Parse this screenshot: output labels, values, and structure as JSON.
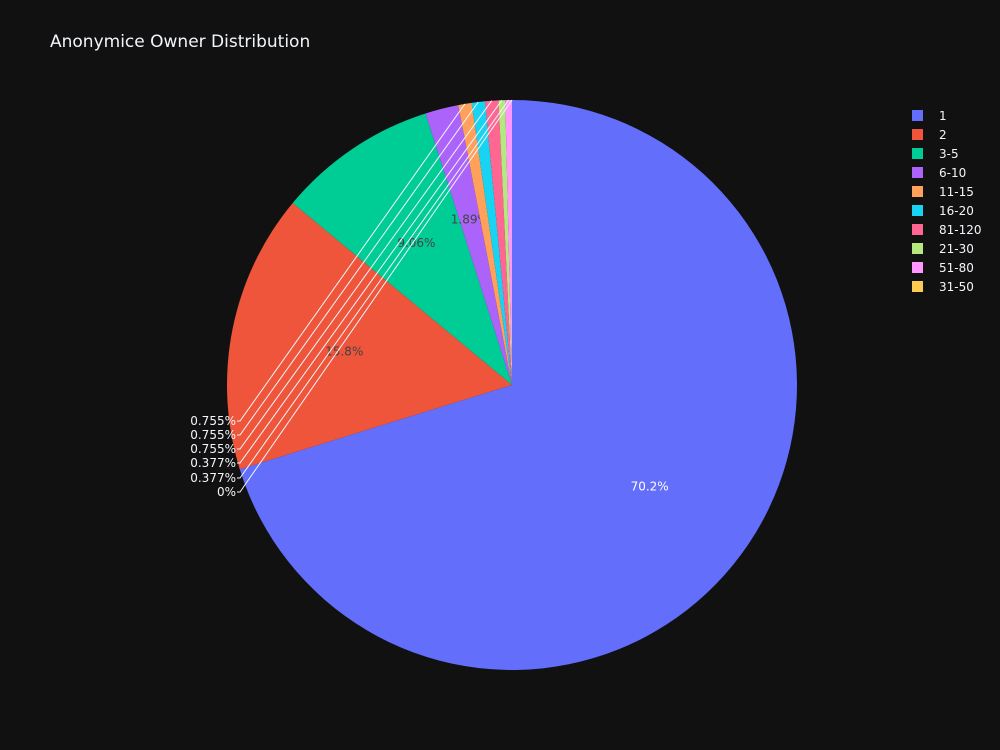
{
  "chart_data": {
    "type": "pie",
    "title": "Anonymice Owner Distribution",
    "slices": [
      {
        "label": "1",
        "percent": 70.2,
        "display": "70.2%",
        "color": "#636efa",
        "text_color": "#ffffff",
        "inside": true
      },
      {
        "label": "2",
        "percent": 15.8,
        "display": "15.8%",
        "color": "#ef553b",
        "text_color": "#444444",
        "inside": true
      },
      {
        "label": "3-5",
        "percent": 9.06,
        "display": "9.06%",
        "color": "#00cc96",
        "text_color": "#444444",
        "inside": true
      },
      {
        "label": "6-10",
        "percent": 1.89,
        "display": "1.89%",
        "color": "#ab63fa",
        "text_color": "#444444",
        "inside": true
      },
      {
        "label": "11-15",
        "percent": 0.755,
        "display": "0.755%",
        "color": "#ffa15a",
        "text_color": "#f2f5fa",
        "inside": false
      },
      {
        "label": "16-20",
        "percent": 0.755,
        "display": "0.755%",
        "color": "#19d3f3",
        "text_color": "#f2f5fa",
        "inside": false
      },
      {
        "label": "81-120",
        "percent": 0.755,
        "display": "0.755%",
        "color": "#ff6692",
        "text_color": "#f2f5fa",
        "inside": false
      },
      {
        "label": "21-30",
        "percent": 0.377,
        "display": "0.377%",
        "color": "#b6e880",
        "text_color": "#f2f5fa",
        "inside": false
      },
      {
        "label": "51-80",
        "percent": 0.377,
        "display": "0.377%",
        "color": "#ff97ff",
        "text_color": "#f2f5fa",
        "inside": false
      },
      {
        "label": "31-50",
        "percent": 0,
        "display": "0%",
        "color": "#fecb52",
        "text_color": "#f2f5fa",
        "inside": false
      }
    ],
    "direction": "clockwise",
    "start": "12 o'clock",
    "legend_position": "top-right",
    "background": "#111111"
  }
}
